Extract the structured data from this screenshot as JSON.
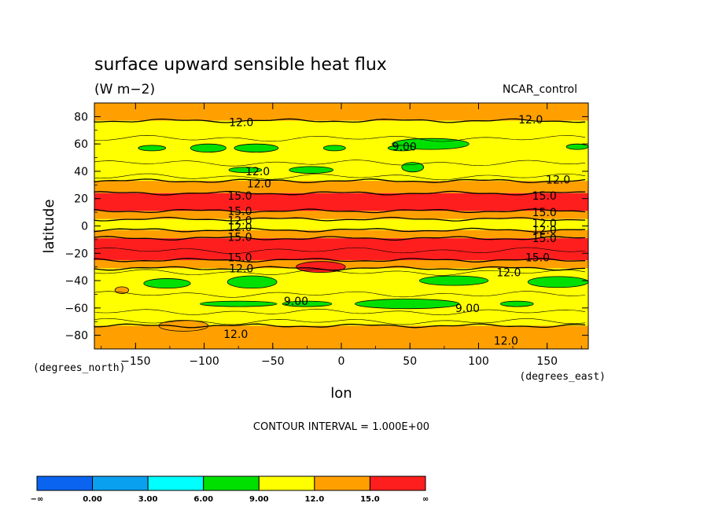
{
  "chart_data": {
    "type": "heatmap",
    "title": "surface upward sensible heat flux",
    "units": "(W m−2)",
    "case_label": "NCAR_control",
    "xlabel": "lon",
    "ylabel": "latitude",
    "x_units": "(degrees_east)",
    "y_units": "(degrees_north)",
    "xlim": [
      -180,
      180
    ],
    "ylim": [
      -90,
      90
    ],
    "x_ticks": [
      -150,
      -100,
      -50,
      0,
      50,
      100,
      150
    ],
    "x_tick_labels": [
      "−150",
      "−100",
      "−50",
      "0",
      "50",
      "100",
      "150"
    ],
    "y_ticks": [
      80,
      60,
      40,
      20,
      0,
      -20,
      -40,
      -60,
      -80
    ],
    "y_tick_labels": [
      "80",
      "60",
      "40",
      "20",
      "0",
      "−20",
      "−40",
      "−60",
      "−80"
    ],
    "contour_interval_text": "CONTOUR INTERVAL = 1.000E+00",
    "colorbar": {
      "boundaries": [
        "−∞",
        "0.00",
        "3.00",
        "6.00",
        "9.00",
        "12.0",
        "15.0",
        "∞"
      ],
      "colors": [
        "#0a64f0",
        "#0aa0f0",
        "#00ffff",
        "#00e000",
        "#ffff00",
        "#ffa000",
        "#ff1e1e"
      ]
    },
    "bands": [
      {
        "lat_top": 90,
        "lat_bottom": 77,
        "level_color": "#ffa000"
      },
      {
        "lat_top": 77,
        "lat_bottom": 33,
        "level_color": "#ffff00"
      },
      {
        "lat_top": 33,
        "lat_bottom": 24,
        "level_color": "#ffa000"
      },
      {
        "lat_top": 24,
        "lat_bottom": 11,
        "level_color": "#ff1e1e"
      },
      {
        "lat_top": 11,
        "lat_bottom": 5,
        "level_color": "#ffa000"
      },
      {
        "lat_top": 5,
        "lat_bottom": -3,
        "level_color": "#ffff00"
      },
      {
        "lat_top": -3,
        "lat_bottom": -9,
        "level_color": "#ffa000"
      },
      {
        "lat_top": -9,
        "lat_bottom": -25,
        "level_color": "#ff1e1e"
      },
      {
        "lat_top": -25,
        "lat_bottom": -31,
        "level_color": "#ffa000"
      },
      {
        "lat_top": -31,
        "lat_bottom": -73,
        "level_color": "#ffff00"
      },
      {
        "lat_top": -73,
        "lat_bottom": -90,
        "level_color": "#ffa000"
      }
    ],
    "patches": [
      {
        "lon": -138,
        "lat": 57,
        "rx": 10,
        "ry": 2,
        "color": "#00e000"
      },
      {
        "lon": -97,
        "lat": 57,
        "rx": 13,
        "ry": 3,
        "color": "#00e000"
      },
      {
        "lon": -62,
        "lat": 57,
        "rx": 16,
        "ry": 3,
        "color": "#00e000"
      },
      {
        "lon": -5,
        "lat": 57,
        "rx": 8,
        "ry": 2,
        "color": "#00e000"
      },
      {
        "lon": 65,
        "lat": 60,
        "rx": 28,
        "ry": 4,
        "color": "#00e000"
      },
      {
        "lon": 44,
        "lat": 57,
        "rx": 10,
        "ry": 2,
        "color": "#00e000"
      },
      {
        "lon": 172,
        "lat": 58,
        "rx": 8,
        "ry": 2,
        "color": "#00e000"
      },
      {
        "lon": -70,
        "lat": 41,
        "rx": 12,
        "ry": 2,
        "color": "#00e000"
      },
      {
        "lon": -22,
        "lat": 41,
        "rx": 16,
        "ry": 2.5,
        "color": "#00e000"
      },
      {
        "lon": 52,
        "lat": 43,
        "rx": 8,
        "ry": 3.5,
        "color": "#00e000"
      },
      {
        "lon": -127,
        "lat": -42,
        "rx": 17,
        "ry": 3.5,
        "color": "#00e000"
      },
      {
        "lon": -65,
        "lat": -41,
        "rx": 18,
        "ry": 4.5,
        "color": "#00e000"
      },
      {
        "lon": 82,
        "lat": -40,
        "rx": 25,
        "ry": 3.5,
        "color": "#00e000"
      },
      {
        "lon": 158,
        "lat": -41,
        "rx": 22,
        "ry": 4,
        "color": "#00e000"
      },
      {
        "lon": -75,
        "lat": -57,
        "rx": 28,
        "ry": 2,
        "color": "#00e000"
      },
      {
        "lon": -25,
        "lat": -57,
        "rx": 18,
        "ry": 2,
        "color": "#00e000"
      },
      {
        "lon": 48,
        "lat": -57,
        "rx": 38,
        "ry": 3.5,
        "color": "#00e000"
      },
      {
        "lon": 128,
        "lat": -57,
        "rx": 12,
        "ry": 2,
        "color": "#00e000"
      },
      {
        "lon": -160,
        "lat": -47,
        "rx": 5,
        "ry": 2.5,
        "color": "#ffa000"
      },
      {
        "lon": -115,
        "lat": -73,
        "rx": 18,
        "ry": 4,
        "color": "#ffa000"
      },
      {
        "lon": -15,
        "lat": -30,
        "rx": 18,
        "ry": 4,
        "color": "#ff1e1e"
      }
    ],
    "contour_labels": [
      {
        "lon": -73,
        "lat": 76,
        "text": "12.0"
      },
      {
        "lon": 138,
        "lat": 78,
        "text": "12.0"
      },
      {
        "lon": 46,
        "lat": 58,
        "text": "9.00"
      },
      {
        "lon": -61,
        "lat": 40,
        "text": "12.0"
      },
      {
        "lon": -60,
        "lat": 31,
        "text": "12.0"
      },
      {
        "lon": 158,
        "lat": 34,
        "text": "12.0"
      },
      {
        "lon": -74,
        "lat": 22,
        "text": "15.0"
      },
      {
        "lon": 148,
        "lat": 22,
        "text": "15.0"
      },
      {
        "lon": -74,
        "lat": 11,
        "text": "15.0"
      },
      {
        "lon": 148,
        "lat": 10,
        "text": "15.0"
      },
      {
        "lon": -74,
        "lat": 4,
        "text": "12.0"
      },
      {
        "lon": -74,
        "lat": -1,
        "text": "12.0"
      },
      {
        "lon": 148,
        "lat": 2,
        "text": "12.0"
      },
      {
        "lon": 148,
        "lat": -3,
        "text": "12.0"
      },
      {
        "lon": -74,
        "lat": -8,
        "text": "15.0"
      },
      {
        "lon": 148,
        "lat": -9,
        "text": "15.0"
      },
      {
        "lon": -74,
        "lat": -23,
        "text": "15.0"
      },
      {
        "lon": 143,
        "lat": -23,
        "text": "15.0"
      },
      {
        "lon": -73,
        "lat": -31,
        "text": "12.0"
      },
      {
        "lon": 122,
        "lat": -34,
        "text": "12.0"
      },
      {
        "lon": -33,
        "lat": -55,
        "text": "9.00"
      },
      {
        "lon": 92,
        "lat": -60,
        "text": "9.00"
      },
      {
        "lon": -77,
        "lat": -79,
        "text": "12.0"
      },
      {
        "lon": 120,
        "lat": -84,
        "text": "12.0"
      }
    ],
    "grid": false,
    "legend_position": "bottom"
  }
}
